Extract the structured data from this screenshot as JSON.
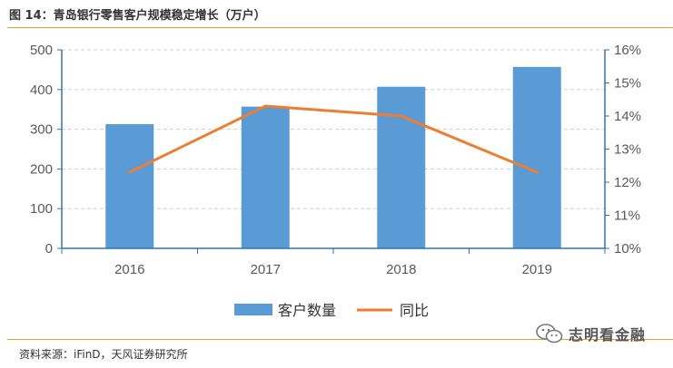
{
  "title": "图 14：青岛银行零售客户规模稳定增长（万户）",
  "source": "资料来源：iFinD，天风证券研究所",
  "watermark": {
    "text": "志明看金融",
    "icon": "wechat-icon"
  },
  "colors": {
    "bar": "#5b9bd5",
    "line": "#ed7d31",
    "grid": "#d0d0d0",
    "axis": "#2e75b6",
    "rule": "#e0a030"
  },
  "chart_data": {
    "type": "bar",
    "title": "",
    "xlabel": "",
    "ylabel": "",
    "categories": [
      "2016",
      "2017",
      "2018",
      "2019"
    ],
    "series": [
      {
        "name": "客户数量",
        "type": "bar",
        "axis": "left",
        "values": [
          313,
          357,
          407,
          457
        ]
      },
      {
        "name": "同比",
        "type": "line",
        "axis": "right",
        "values": [
          12.3,
          14.3,
          14.0,
          12.3
        ]
      }
    ],
    "ylim": [
      0,
      500
    ],
    "y_ticks": [
      "0",
      "100",
      "200",
      "300",
      "400",
      "500"
    ],
    "y2lim": [
      10,
      16
    ],
    "y2_ticks": [
      "10%",
      "11%",
      "12%",
      "13%",
      "14%",
      "15%",
      "16%"
    ],
    "grid": true,
    "legend": "bottom"
  }
}
